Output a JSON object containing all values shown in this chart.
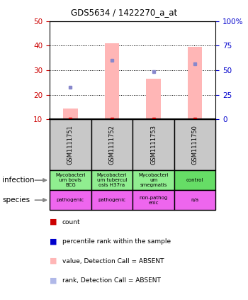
{
  "title": "GDS5634 / 1422270_a_at",
  "samples": [
    "GSM1111751",
    "GSM1111752",
    "GSM1111753",
    "GSM1111750"
  ],
  "bar_values": [
    14.5,
    41.0,
    26.5,
    39.5
  ],
  "rank_dots": [
    23.0,
    34.0,
    29.5,
    32.5
  ],
  "bar_color": "#FFB6B6",
  "dot_color": "#8888CC",
  "red_dot_color": "#CC0000",
  "ylim_left": [
    10,
    50
  ],
  "ylim_right": [
    0,
    100
  ],
  "yticks_left": [
    10,
    20,
    30,
    40,
    50
  ],
  "yticks_right": [
    0,
    25,
    50,
    75,
    100
  ],
  "ytick_labels_right": [
    "0",
    "25",
    "50",
    "75",
    "100%"
  ],
  "left_tick_color": "#CC0000",
  "right_tick_color": "#0000CC",
  "infection_labels": [
    "Mycobacteri\num bovis\nBCG",
    "Mycobacteri\num tubercul\nosis H37ra",
    "Mycobacteri\num\nsmegmatis",
    "control"
  ],
  "infection_colors": [
    "#90EE90",
    "#90EE90",
    "#90EE90",
    "#66DD66"
  ],
  "species_labels": [
    "pathogenic",
    "pathogenic",
    "non-pathog\nenic",
    "n/a"
  ],
  "species_colors": [
    "#EE66EE",
    "#EE66EE",
    "#EE66EE",
    "#EE66EE"
  ],
  "gsm_bg_color": "#C8C8C8",
  "legend_items": [
    {
      "label": "count",
      "color": "#CC0000"
    },
    {
      "label": "percentile rank within the sample",
      "color": "#0000CC"
    },
    {
      "label": "value, Detection Call = ABSENT",
      "color": "#FFB6B6"
    },
    {
      "label": "rank, Detection Call = ABSENT",
      "color": "#B0B8E8"
    }
  ],
  "bar_bottom": 10
}
